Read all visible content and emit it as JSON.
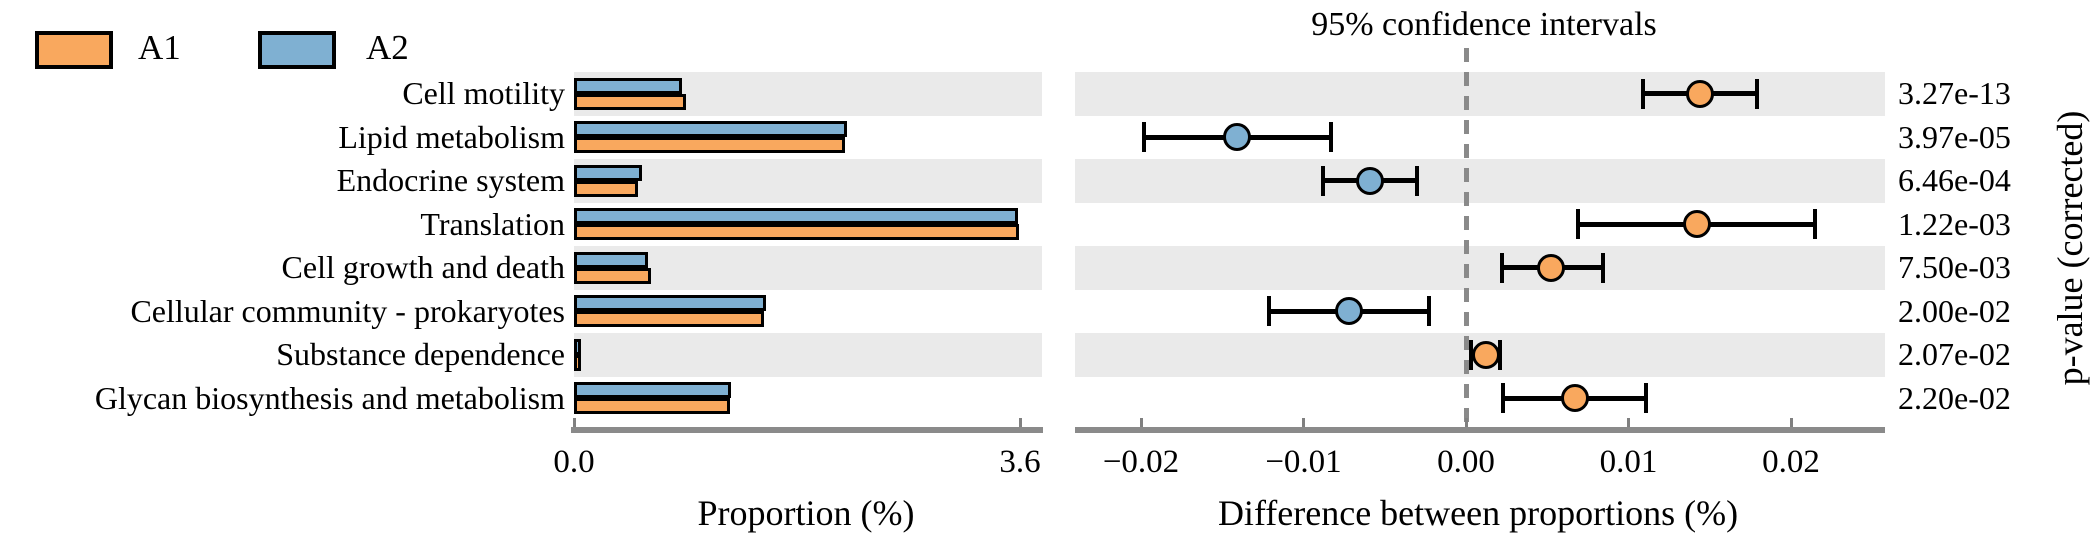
{
  "legend": {
    "items": [
      {
        "label": "A1",
        "color": "#F9A85E"
      },
      {
        "label": "A2",
        "color": "#7FB0D2"
      }
    ]
  },
  "colors": {
    "orange": "#F9A85E",
    "blue": "#7FB0D2",
    "stripe": "#EAEAEA",
    "axis": "#8A8A8A",
    "outline": "#000000"
  },
  "categories": [
    "Cell motility",
    "Lipid metabolism",
    "Endocrine system",
    "Translation",
    "Cell growth and death",
    "Cellular community - prokaryotes",
    "Substance dependence",
    "Glycan biosynthesis and metabolism"
  ],
  "chart_data": [
    {
      "type": "bar",
      "orientation": "horizontal",
      "xlabel": "Proportion (%)",
      "xlim": [
        0,
        3.6
      ],
      "xticks": [
        0.0,
        3.6
      ],
      "xtick_labels": [
        "0.0",
        "3.6"
      ],
      "grid": false,
      "categories": [
        "Cell motility",
        "Lipid metabolism",
        "Endocrine system",
        "Translation",
        "Cell growth and death",
        "Cellular community - prokaryotes",
        "Substance dependence",
        "Glycan biosynthesis and metabolism"
      ],
      "series": [
        {
          "name": "A2",
          "color": "#7FB0D2",
          "values": [
            0.87,
            2.2,
            0.55,
            3.58,
            0.6,
            1.55,
            0.06,
            1.27
          ]
        },
        {
          "name": "A1",
          "color": "#F9A85E",
          "values": [
            0.9,
            2.19,
            0.52,
            3.59,
            0.62,
            1.53,
            0.05,
            1.26
          ]
        }
      ]
    },
    {
      "type": "scatter",
      "title": "95% confidence intervals",
      "xlabel": "Difference between proportions (%)",
      "xlim": [
        -0.0241,
        0.0258
      ],
      "xticks": [
        -0.02,
        -0.01,
        0.0,
        0.01,
        0.02
      ],
      "xtick_labels": [
        "−0.02",
        "−0.01",
        "0.00",
        "0.01",
        "0.02"
      ],
      "zero_line": 0.0,
      "points": [
        {
          "category": "Cell motility",
          "value": 0.0144,
          "ci_low": 0.0109,
          "ci_high": 0.0179,
          "group": "A1"
        },
        {
          "category": "Lipid metabolism",
          "value": -0.0141,
          "ci_low": -0.0198,
          "ci_high": -0.0083,
          "group": "A2"
        },
        {
          "category": "Endocrine system",
          "value": -0.0059,
          "ci_low": -0.0088,
          "ci_high": -0.003,
          "group": "A2"
        },
        {
          "category": "Translation",
          "value": 0.0142,
          "ci_low": 0.0069,
          "ci_high": 0.0215,
          "group": "A1"
        },
        {
          "category": "Cell growth and death",
          "value": 0.0052,
          "ci_low": 0.0022,
          "ci_high": 0.0084,
          "group": "A1"
        },
        {
          "category": "Cellular community - prokaryotes",
          "value": -0.0072,
          "ci_low": -0.0121,
          "ci_high": -0.0023,
          "group": "A2"
        },
        {
          "category": "Substance dependence",
          "value": 0.0012,
          "ci_low": 0.0003,
          "ci_high": 0.0021,
          "group": "A1"
        },
        {
          "category": "Glycan biosynthesis and metabolism",
          "value": 0.0067,
          "ci_low": 0.0023,
          "ci_high": 0.0111,
          "group": "A1"
        }
      ]
    }
  ],
  "pvalues": {
    "axis_label": "p-value (corrected)",
    "values": [
      "3.27e-13",
      "3.97e-05",
      "6.46e-04",
      "1.22e-03",
      "7.50e-03",
      "2.00e-02",
      "2.07e-02",
      "2.20e-02"
    ]
  }
}
